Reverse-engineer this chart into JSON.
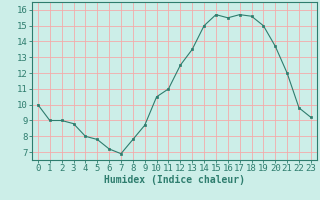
{
  "x": [
    0,
    1,
    2,
    3,
    4,
    5,
    6,
    7,
    8,
    9,
    10,
    11,
    12,
    13,
    14,
    15,
    16,
    17,
    18,
    19,
    20,
    21,
    22,
    23
  ],
  "y": [
    10.0,
    9.0,
    9.0,
    8.8,
    8.0,
    7.8,
    7.2,
    6.9,
    7.8,
    8.7,
    10.5,
    11.0,
    12.5,
    13.5,
    15.0,
    15.7,
    15.5,
    15.7,
    15.6,
    15.0,
    13.7,
    12.0,
    9.8,
    9.2
  ],
  "xlabel": "Humidex (Indice chaleur)",
  "xlim": [
    -0.5,
    23.5
  ],
  "ylim": [
    6.5,
    16.5
  ],
  "yticks": [
    7,
    8,
    9,
    10,
    11,
    12,
    13,
    14,
    15,
    16
  ],
  "xticks": [
    0,
    1,
    2,
    3,
    4,
    5,
    6,
    7,
    8,
    9,
    10,
    11,
    12,
    13,
    14,
    15,
    16,
    17,
    18,
    19,
    20,
    21,
    22,
    23
  ],
  "line_color": "#2e7d6e",
  "marker_color": "#2e7d6e",
  "bg_color": "#cceee8",
  "grid_color": "#f4aaaa",
  "axes_color": "#2e7d6e",
  "label_color": "#2e7d6e",
  "xlabel_fontsize": 7,
  "tick_fontsize": 6.5
}
